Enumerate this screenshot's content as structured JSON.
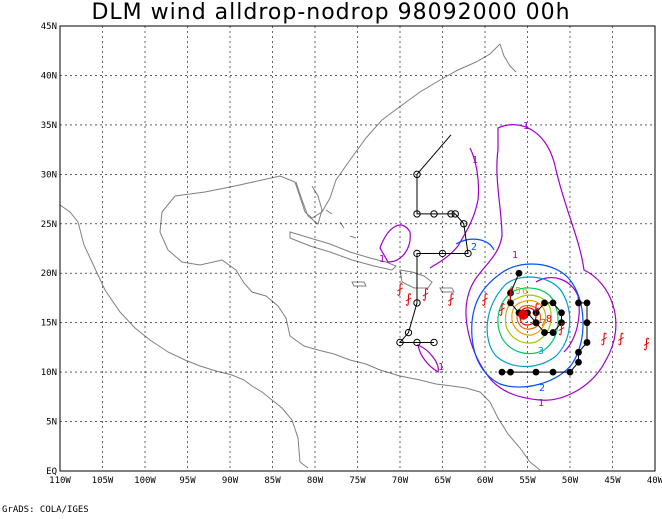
{
  "title": "DLM wind alldrop-nodrop 98092000 00h",
  "footer": "GrADS: COLA/IGES",
  "x_ticks": [
    "110W",
    "105W",
    "100W",
    "95W",
    "90W",
    "85W",
    "80W",
    "75W",
    "70W",
    "65W",
    "60W",
    "55W",
    "50W",
    "45W",
    "40W"
  ],
  "y_ticks": [
    "EQ",
    "5N",
    "10N",
    "15N",
    "20N",
    "25N",
    "30N",
    "35N",
    "40N",
    "45N"
  ],
  "lon_range": [
    -110,
    -40
  ],
  "lat_range": [
    0,
    45
  ],
  "colors": {
    "contour_1": "#a000c8",
    "contour_2": "#0050ff",
    "contour_3": "#00a0c8",
    "contour_4": "#00c864",
    "contour_5": "#a0c800",
    "contour_6": "#e6a000",
    "contour_7": "#f06000",
    "contour_8": "#e60000",
    "coast": "#808080",
    "tracks": "#000000",
    "storm_symbol": "#e60000"
  },
  "contour_labels": [
    "1",
    "1",
    "1",
    "1",
    "1",
    "1",
    "2",
    "2",
    "3",
    "4",
    "5",
    "6",
    "7",
    "8"
  ],
  "storm_symbol": "hurricane-symbol",
  "track_open": [
    [
      -68,
      30
    ],
    [
      -68,
      26
    ],
    [
      -66,
      26
    ],
    [
      -64,
      26
    ],
    [
      -63.5,
      26
    ],
    [
      -62.5,
      25
    ],
    [
      -62,
      22
    ],
    [
      -65,
      22
    ],
    [
      -68,
      22
    ],
    [
      -68,
      17
    ],
    [
      -69,
      14
    ],
    [
      -70,
      13
    ],
    [
      -68,
      13
    ],
    [
      -66,
      13
    ]
  ],
  "track_filled": [
    [
      -56,
      20
    ],
    [
      -57,
      18
    ],
    [
      -57,
      17
    ],
    [
      -56,
      16
    ],
    [
      -55,
      16
    ],
    [
      -54,
      15
    ],
    [
      -53,
      14
    ],
    [
      -52,
      14
    ],
    [
      -51,
      15
    ],
    [
      -51,
      16
    ],
    [
      -52,
      17
    ],
    [
      -53,
      17
    ],
    [
      -54,
      16
    ],
    [
      -49,
      17
    ],
    [
      -48,
      17
    ],
    [
      -48,
      15
    ],
    [
      -48,
      13
    ],
    [
      -49,
      12
    ],
    [
      -49,
      11
    ],
    [
      -50,
      10
    ],
    [
      -52,
      10
    ],
    [
      -54,
      10
    ],
    [
      -57,
      10
    ],
    [
      -58,
      10
    ]
  ]
}
